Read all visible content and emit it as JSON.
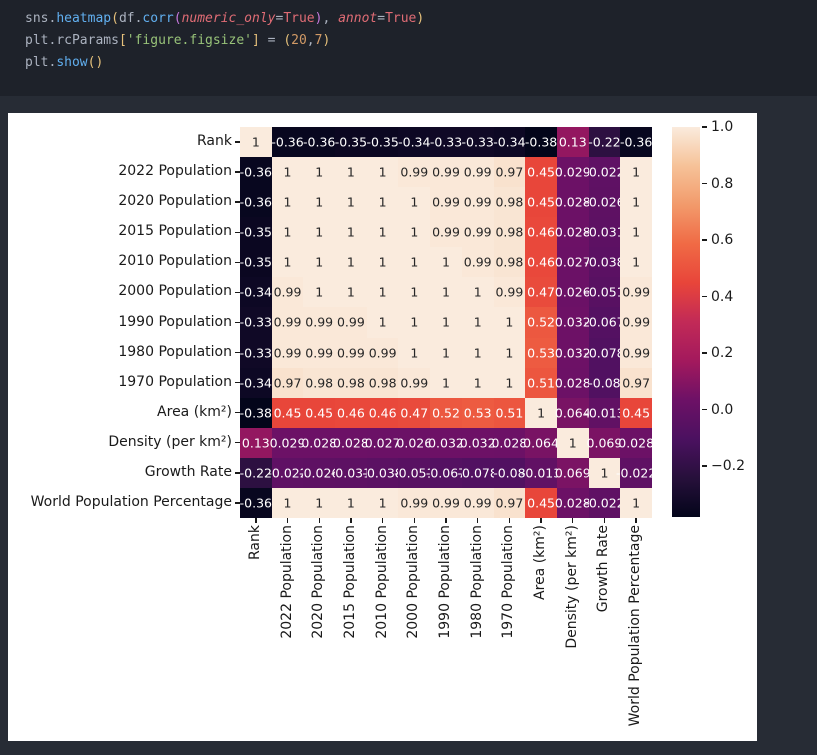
{
  "code_cell": {
    "lines": [
      {
        "tokens": [
          {
            "t": "sns",
            "c": "v"
          },
          {
            "t": ".",
            "c": "p"
          },
          {
            "t": "heatmap",
            "c": "f"
          },
          {
            "t": "(",
            "c": "b1"
          },
          {
            "t": "df",
            "c": "v"
          },
          {
            "t": ".",
            "c": "p"
          },
          {
            "t": "corr",
            "c": "f"
          },
          {
            "t": "(",
            "c": "b2"
          },
          {
            "t": "numeric_only",
            "c": "kw"
          },
          {
            "t": "=",
            "c": "op"
          },
          {
            "t": "True",
            "c": "const"
          },
          {
            "t": ")",
            "c": "b2"
          },
          {
            "t": ", ",
            "c": "p"
          },
          {
            "t": "annot",
            "c": "kw"
          },
          {
            "t": "=",
            "c": "op"
          },
          {
            "t": "True",
            "c": "const"
          },
          {
            "t": ")",
            "c": "b1"
          }
        ]
      },
      {
        "tokens": [
          {
            "t": "plt",
            "c": "v"
          },
          {
            "t": ".",
            "c": "p"
          },
          {
            "t": "rcParams",
            "c": "v"
          },
          {
            "t": "[",
            "c": "b1"
          },
          {
            "t": "'figure.figsize'",
            "c": "str"
          },
          {
            "t": "]",
            "c": "b1"
          },
          {
            "t": " = ",
            "c": "op"
          },
          {
            "t": "(",
            "c": "b1"
          },
          {
            "t": "20",
            "c": "num"
          },
          {
            "t": ",",
            "c": "p"
          },
          {
            "t": "7",
            "c": "num"
          },
          {
            "t": ")",
            "c": "b1"
          }
        ]
      },
      {
        "tokens": [
          {
            "t": "plt",
            "c": "v"
          },
          {
            "t": ".",
            "c": "p"
          },
          {
            "t": "show",
            "c": "f"
          },
          {
            "t": "()",
            "c": "b1"
          }
        ]
      }
    ]
  },
  "chart_data": {
    "type": "heatmap",
    "annot": true,
    "colormap": "rocket",
    "vmin": -0.38,
    "vmax": 1.0,
    "legend_position": "right-colorbar",
    "colorbar_ticks": [
      1.0,
      0.8,
      0.6,
      0.4,
      0.2,
      0.0,
      -0.2
    ],
    "categories": [
      "Rank",
      "2022 Population",
      "2020 Population",
      "2015 Population",
      "2010 Population",
      "2000 Population",
      "1990 Population",
      "1980 Population",
      "1970 Population",
      "Area (km²)",
      "Density (per km²)",
      "Growth Rate",
      "World Population Percentage"
    ],
    "matrix": [
      [
        1,
        -0.36,
        -0.36,
        -0.35,
        -0.35,
        -0.34,
        -0.33,
        -0.33,
        -0.34,
        -0.38,
        0.13,
        -0.22,
        -0.36
      ],
      [
        -0.36,
        1,
        1,
        1,
        1,
        0.99,
        0.99,
        0.99,
        0.97,
        0.45,
        0.029,
        -0.022,
        1
      ],
      [
        -0.36,
        1,
        1,
        1,
        1,
        1,
        0.99,
        0.99,
        0.98,
        0.45,
        0.028,
        -0.026,
        1
      ],
      [
        -0.35,
        1,
        1,
        1,
        1,
        1,
        0.99,
        0.99,
        0.98,
        0.46,
        0.028,
        -0.031,
        1
      ],
      [
        -0.35,
        1,
        1,
        1,
        1,
        1,
        1,
        0.99,
        0.98,
        0.46,
        0.027,
        -0.038,
        1
      ],
      [
        -0.34,
        0.99,
        1,
        1,
        1,
        1,
        1,
        1,
        0.99,
        0.47,
        0.026,
        -0.051,
        0.99
      ],
      [
        -0.33,
        0.99,
        0.99,
        0.99,
        1,
        1,
        1,
        1,
        1,
        0.52,
        0.032,
        -0.067,
        0.99
      ],
      [
        -0.33,
        0.99,
        0.99,
        0.99,
        0.99,
        1,
        1,
        1,
        1,
        0.53,
        0.032,
        -0.078,
        0.99
      ],
      [
        -0.34,
        0.97,
        0.98,
        0.98,
        0.98,
        0.99,
        1,
        1,
        1,
        0.51,
        0.028,
        -0.08,
        0.97
      ],
      [
        -0.38,
        0.45,
        0.45,
        0.46,
        0.46,
        0.47,
        0.52,
        0.53,
        0.51,
        1,
        0.064,
        -0.013,
        0.45
      ],
      [
        0.13,
        0.029,
        0.028,
        0.028,
        0.027,
        0.026,
        0.032,
        0.032,
        0.028,
        0.064,
        1,
        0.069,
        0.028
      ],
      [
        -0.22,
        -0.022,
        -0.026,
        -0.031,
        -0.038,
        -0.051,
        -0.067,
        -0.078,
        -0.08,
        -0.013,
        0.069,
        1,
        -0.022
      ],
      [
        -0.36,
        1,
        1,
        1,
        1,
        0.99,
        0.99,
        0.99,
        0.97,
        0.45,
        0.028,
        -0.022,
        1
      ]
    ],
    "rocket_stops": [
      [
        0.0,
        "#03051A"
      ],
      [
        0.1,
        "#27103B"
      ],
      [
        0.2,
        "#4B1160"
      ],
      [
        0.3,
        "#6D1166"
      ],
      [
        0.4,
        "#A3195D"
      ],
      [
        0.5,
        "#C22A57"
      ],
      [
        0.6,
        "#E8453A"
      ],
      [
        0.7,
        "#F06A45"
      ],
      [
        0.8,
        "#F29A6B"
      ],
      [
        0.9,
        "#F6C298"
      ],
      [
        1.0,
        "#FAEBDD"
      ]
    ],
    "annotation_text_dark": "#262626",
    "annotation_text_light": "#ffffff"
  }
}
